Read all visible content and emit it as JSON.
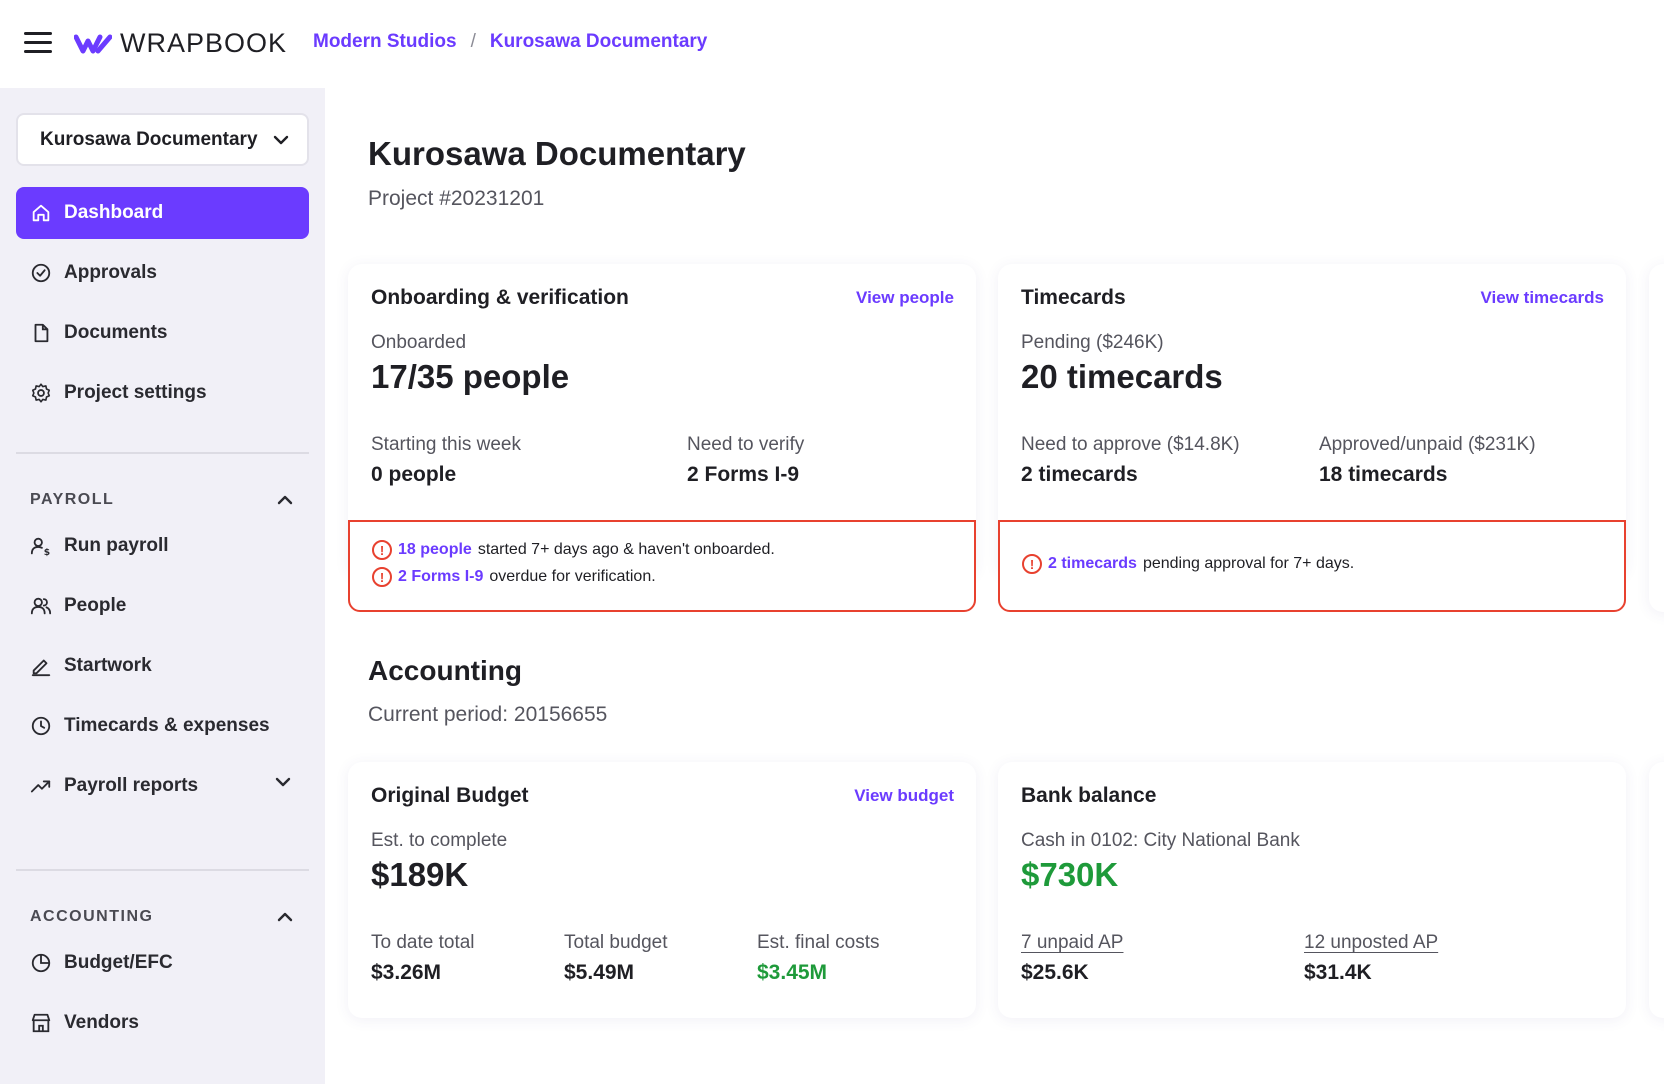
{
  "header": {
    "logo_text": "WRAPBOOK",
    "breadcrumb": [
      "Modern Studios",
      "Kurosawa Documentary"
    ],
    "brand_color": "#6b3bff"
  },
  "sidebar": {
    "project_selector": "Kurosawa Documentary",
    "nav": [
      {
        "label": "Dashboard",
        "icon": "home-icon",
        "active": true
      },
      {
        "label": "Approvals",
        "icon": "check-circle-icon"
      },
      {
        "label": "Documents",
        "icon": "document-icon"
      },
      {
        "label": "Project settings",
        "icon": "gear-icon"
      }
    ],
    "payroll_section": {
      "title": "PAYROLL",
      "items": [
        {
          "label": "Run payroll",
          "icon": "user-dollar-icon"
        },
        {
          "label": "People",
          "icon": "people-icon"
        },
        {
          "label": "Startwork",
          "icon": "pen-icon"
        },
        {
          "label": "Timecards & expenses",
          "icon": "clock-icon"
        },
        {
          "label": "Payroll reports",
          "icon": "trend-icon"
        }
      ]
    },
    "accounting_section": {
      "title": "ACCOUNTING",
      "items": [
        {
          "label": "Budget/EFC",
          "icon": "pie-chart-icon"
        },
        {
          "label": "Vendors",
          "icon": "store-icon"
        }
      ]
    }
  },
  "main": {
    "title": "Kurosawa Documentary",
    "subtitle": "Project #20231201",
    "onboarding": {
      "title": "Onboarding & verification",
      "link": "View people",
      "main_label": "Onboarded",
      "main_value": "17/35 people",
      "stat1_label": "Starting this week",
      "stat1_value": "0 people",
      "stat2_label": "Need to verify",
      "stat2_value": "2 Forms I-9",
      "alert1_link": "18 people",
      "alert1_text": "started 7+ days ago & haven't onboarded.",
      "alert2_link": "2 Forms I-9",
      "alert2_text": "overdue for verification."
    },
    "timecards": {
      "title": "Timecards",
      "link": "View timecards",
      "main_label": "Pending ($246K)",
      "main_value": "20 timecards",
      "stat1_label": "Need to approve ($14.8K)",
      "stat1_value": "2 timecards",
      "stat2_label": "Approved/unpaid ($231K)",
      "stat2_value": "18 timecards",
      "alert1_link": "2 timecards",
      "alert1_text": "pending approval for 7+ days."
    },
    "accounting_title": "Accounting",
    "accounting_sub": "Current period: 20156655",
    "budget": {
      "title": "Original Budget",
      "link": "View budget",
      "main_label": "Est. to complete",
      "main_value": "$189K",
      "stat1_label": "To date total",
      "stat1_value": "$3.26M",
      "stat2_label": "Total budget",
      "stat2_value": "$5.49M",
      "stat3_label": "Est. final costs",
      "stat3_value": "$3.45M"
    },
    "bank": {
      "title": "Bank balance",
      "main_label": "Cash in 0102: City National Bank",
      "main_value": "$730K",
      "stat1_label": "7 unpaid AP",
      "stat1_value": "$25.6K",
      "stat2_label": "12 unposted AP",
      "stat2_value": "$31.4K"
    },
    "alert_color": "#e8412f",
    "positive_color": "#1e9a3a"
  }
}
